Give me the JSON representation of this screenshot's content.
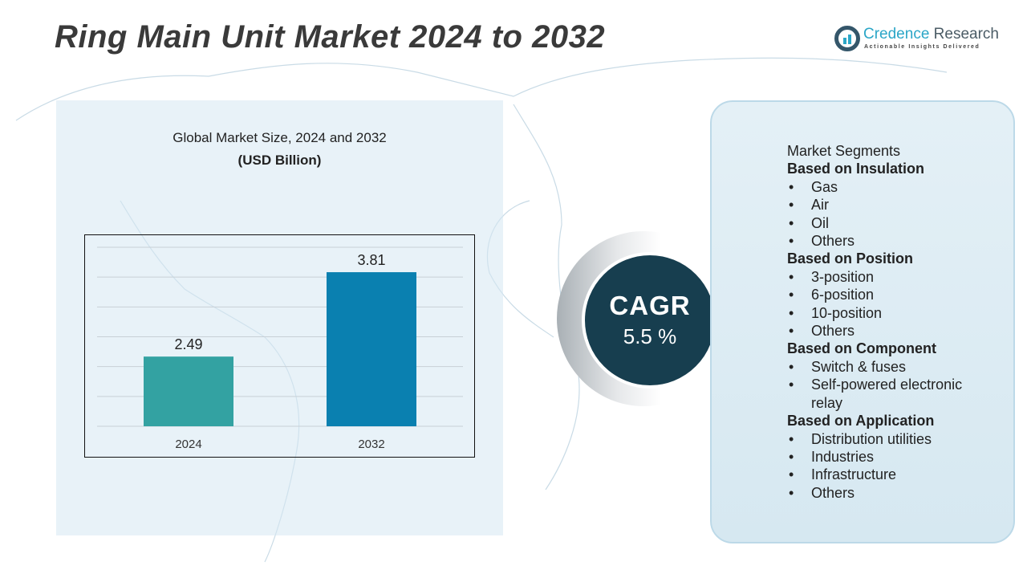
{
  "title": "Ring Main Unit Market 2024 to 2032",
  "logo": {
    "name_part1": "Credence",
    "name_part2": "Research",
    "tagline": "Actionable Insights Delivered"
  },
  "chart_data": {
    "type": "bar",
    "title": "Global Market Size, 2024 and 2032",
    "unit": "(USD Billion)",
    "categories": [
      "2024",
      "2032"
    ],
    "values": [
      2.49,
      3.81
    ],
    "data_labels": [
      "2.49",
      "3.81"
    ],
    "colors": [
      "#33a2a2",
      "#0a80b0"
    ],
    "ylim": [
      1.4,
      4.2
    ],
    "grid": true,
    "y_axis_labels_visible": false
  },
  "cagr": {
    "label": "CAGR",
    "value": "5.5 %"
  },
  "segments": {
    "heading": "Market Segments",
    "groups": [
      {
        "title": "Based on Insulation",
        "items": [
          "Gas",
          "Air",
          "Oil",
          "Others"
        ]
      },
      {
        "title": "Based on Position",
        "items": [
          "3-position",
          "6-position",
          "10-position",
          "Others"
        ]
      },
      {
        "title": "Based on Component",
        "items": [
          "Switch & fuses",
          "Self-powered electronic relay"
        ]
      },
      {
        "title": "Based on Application",
        "items": [
          "Distribution utilities",
          "Industries",
          "Infrastructure",
          "Others"
        ]
      }
    ]
  }
}
